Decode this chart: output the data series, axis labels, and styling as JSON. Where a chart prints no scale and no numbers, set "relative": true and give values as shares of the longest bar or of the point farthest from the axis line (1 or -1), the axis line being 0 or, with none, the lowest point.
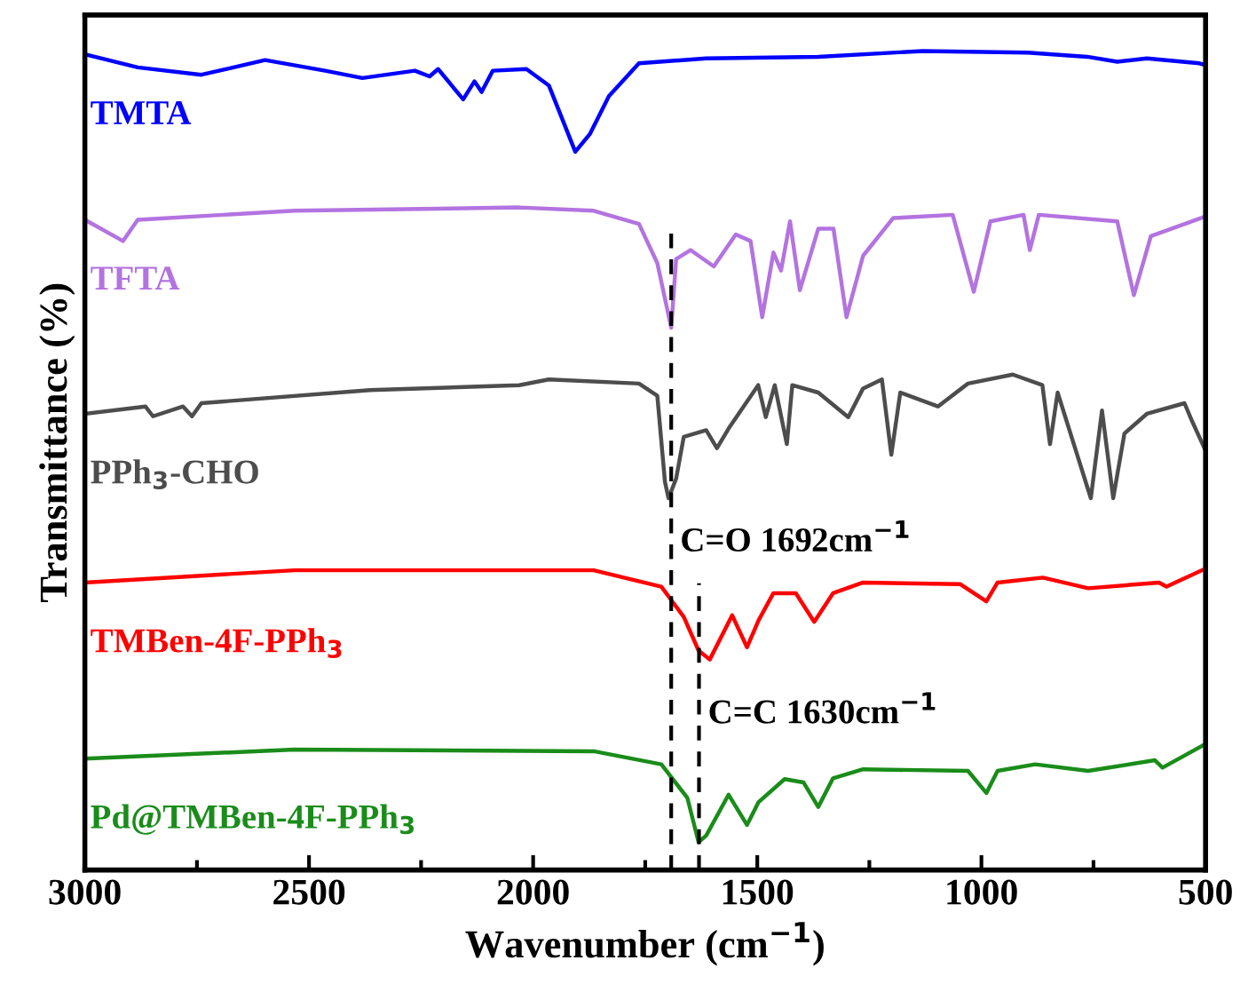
{
  "chart_data": {
    "type": "line",
    "relative": true,
    "xlabel": "Wavenumber (cm$^{−1}$)",
    "ylabel": "Transmittance (%)",
    "xlim": [
      3000,
      500
    ],
    "xticks": [
      3000,
      2500,
      2000,
      1500,
      1000,
      500
    ],
    "tick_labels": "x",
    "legend": false,
    "grid": false,
    "marker": "none",
    "line_style": "solid",
    "series": [
      {
        "name": "TMTA",
        "color": "#0000ff",
        "x": [
          3000,
          2882,
          2740,
          2598,
          2464,
          2381,
          2264,
          2231,
          2212,
          2156,
          2131,
          2115,
          2090,
          2015,
          1965,
          1906,
          1873,
          1831,
          1764,
          1614,
          1364,
          1131,
          897,
          764,
          697,
          631,
          514,
          500
        ],
        "values": [
          0.996,
          0.98,
          0.971,
          0.989,
          0.976,
          0.967,
          0.976,
          0.969,
          0.978,
          0.941,
          0.963,
          0.95,
          0.976,
          0.978,
          0.958,
          0.877,
          0.899,
          0.945,
          0.985,
          0.991,
          0.993,
          1.0,
          0.998,
          0.993,
          0.987,
          0.991,
          0.985,
          0.983
        ]
      },
      {
        "name": "TFTA",
        "color": "#b373e0",
        "x": [
          3000,
          2915,
          2882,
          2532,
          2031,
          1865,
          1764,
          1723,
          1692,
          1681,
          1649,
          1597,
          1548,
          1515,
          1489,
          1464,
          1447,
          1427,
          1405,
          1364,
          1330,
          1301,
          1264,
          1197,
          1064,
          1017,
          980,
          906,
          892,
          872,
          697,
          660,
          622,
          500
        ],
        "values": [
          0.794,
          0.768,
          0.794,
          0.805,
          0.809,
          0.805,
          0.789,
          0.741,
          0.662,
          0.746,
          0.757,
          0.737,
          0.776,
          0.768,
          0.675,
          0.754,
          0.732,
          0.792,
          0.708,
          0.783,
          0.783,
          0.675,
          0.75,
          0.796,
          0.8,
          0.706,
          0.792,
          0.8,
          0.757,
          0.8,
          0.792,
          0.702,
          0.774,
          0.798
        ]
      },
      {
        "name": "PPh$_{3}$-CHO",
        "color": "#4d4d4d",
        "x": [
          3000,
          2865,
          2848,
          2781,
          2761,
          2740,
          2364,
          2031,
          1965,
          1764,
          1723,
          1706,
          1698,
          1681,
          1664,
          1614,
          1590,
          1564,
          1498,
          1481,
          1461,
          1434,
          1422,
          1364,
          1297,
          1264,
          1222,
          1201,
          1181,
          1097,
          1030,
          930,
          864,
          847,
          830,
          756,
          731,
          706,
          681,
          631,
          547,
          530,
          500
        ],
        "values": [
          0.557,
          0.566,
          0.554,
          0.566,
          0.554,
          0.57,
          0.586,
          0.592,
          0.599,
          0.594,
          0.579,
          0.474,
          0.454,
          0.478,
          0.529,
          0.537,
          0.515,
          0.539,
          0.592,
          0.553,
          0.592,
          0.52,
          0.592,
          0.583,
          0.553,
          0.588,
          0.599,
          0.507,
          0.583,
          0.566,
          0.594,
          0.605,
          0.592,
          0.52,
          0.583,
          0.454,
          0.561,
          0.454,
          0.533,
          0.557,
          0.57,
          0.548,
          0.512
        ]
      },
      {
        "name": "TMBen-4F-PPh$_{3}$",
        "color": "#ff0000",
        "x": [
          3000,
          2815,
          2532,
          1865,
          1714,
          1664,
          1631,
          1606,
          1556,
          1523,
          1497,
          1464,
          1414,
          1373,
          1331,
          1264,
          1047,
          989,
          964,
          863,
          762,
          604,
          587,
          500
        ],
        "values": [
          0.351,
          0.357,
          0.366,
          0.366,
          0.346,
          0.309,
          0.268,
          0.257,
          0.311,
          0.272,
          0.305,
          0.338,
          0.338,
          0.303,
          0.338,
          0.351,
          0.349,
          0.328,
          0.351,
          0.357,
          0.344,
          0.351,
          0.346,
          0.368
        ]
      },
      {
        "name": "Pd@TMBen-4F-PPh$_{3}$",
        "color": "#1a8c1a",
        "x": [
          3000,
          2532,
          1865,
          1714,
          1656,
          1631,
          1614,
          1564,
          1523,
          1497,
          1439,
          1397,
          1364,
          1331,
          1264,
          1030,
          989,
          964,
          880,
          762,
          613,
          596,
          500
        ],
        "values": [
          0.136,
          0.147,
          0.145,
          0.129,
          0.088,
          0.034,
          0.042,
          0.092,
          0.055,
          0.083,
          0.111,
          0.107,
          0.077,
          0.112,
          0.123,
          0.121,
          0.094,
          0.121,
          0.129,
          0.121,
          0.134,
          0.125,
          0.154
        ]
      }
    ],
    "ref_lines": [
      {
        "axis": "x",
        "value": 1692,
        "color": "#000000",
        "line_style": "dashed"
      },
      {
        "axis": "x",
        "value": 1630,
        "color": "#000000",
        "line_style": "dashed"
      }
    ],
    "annotations": [
      {
        "text": "C=O 1692cm$^{−1}$",
        "x": 1692,
        "y": 0.38
      },
      {
        "text": "C=C 1630cm$^{−1}$",
        "x": 1630,
        "y": 0.17
      }
    ]
  }
}
